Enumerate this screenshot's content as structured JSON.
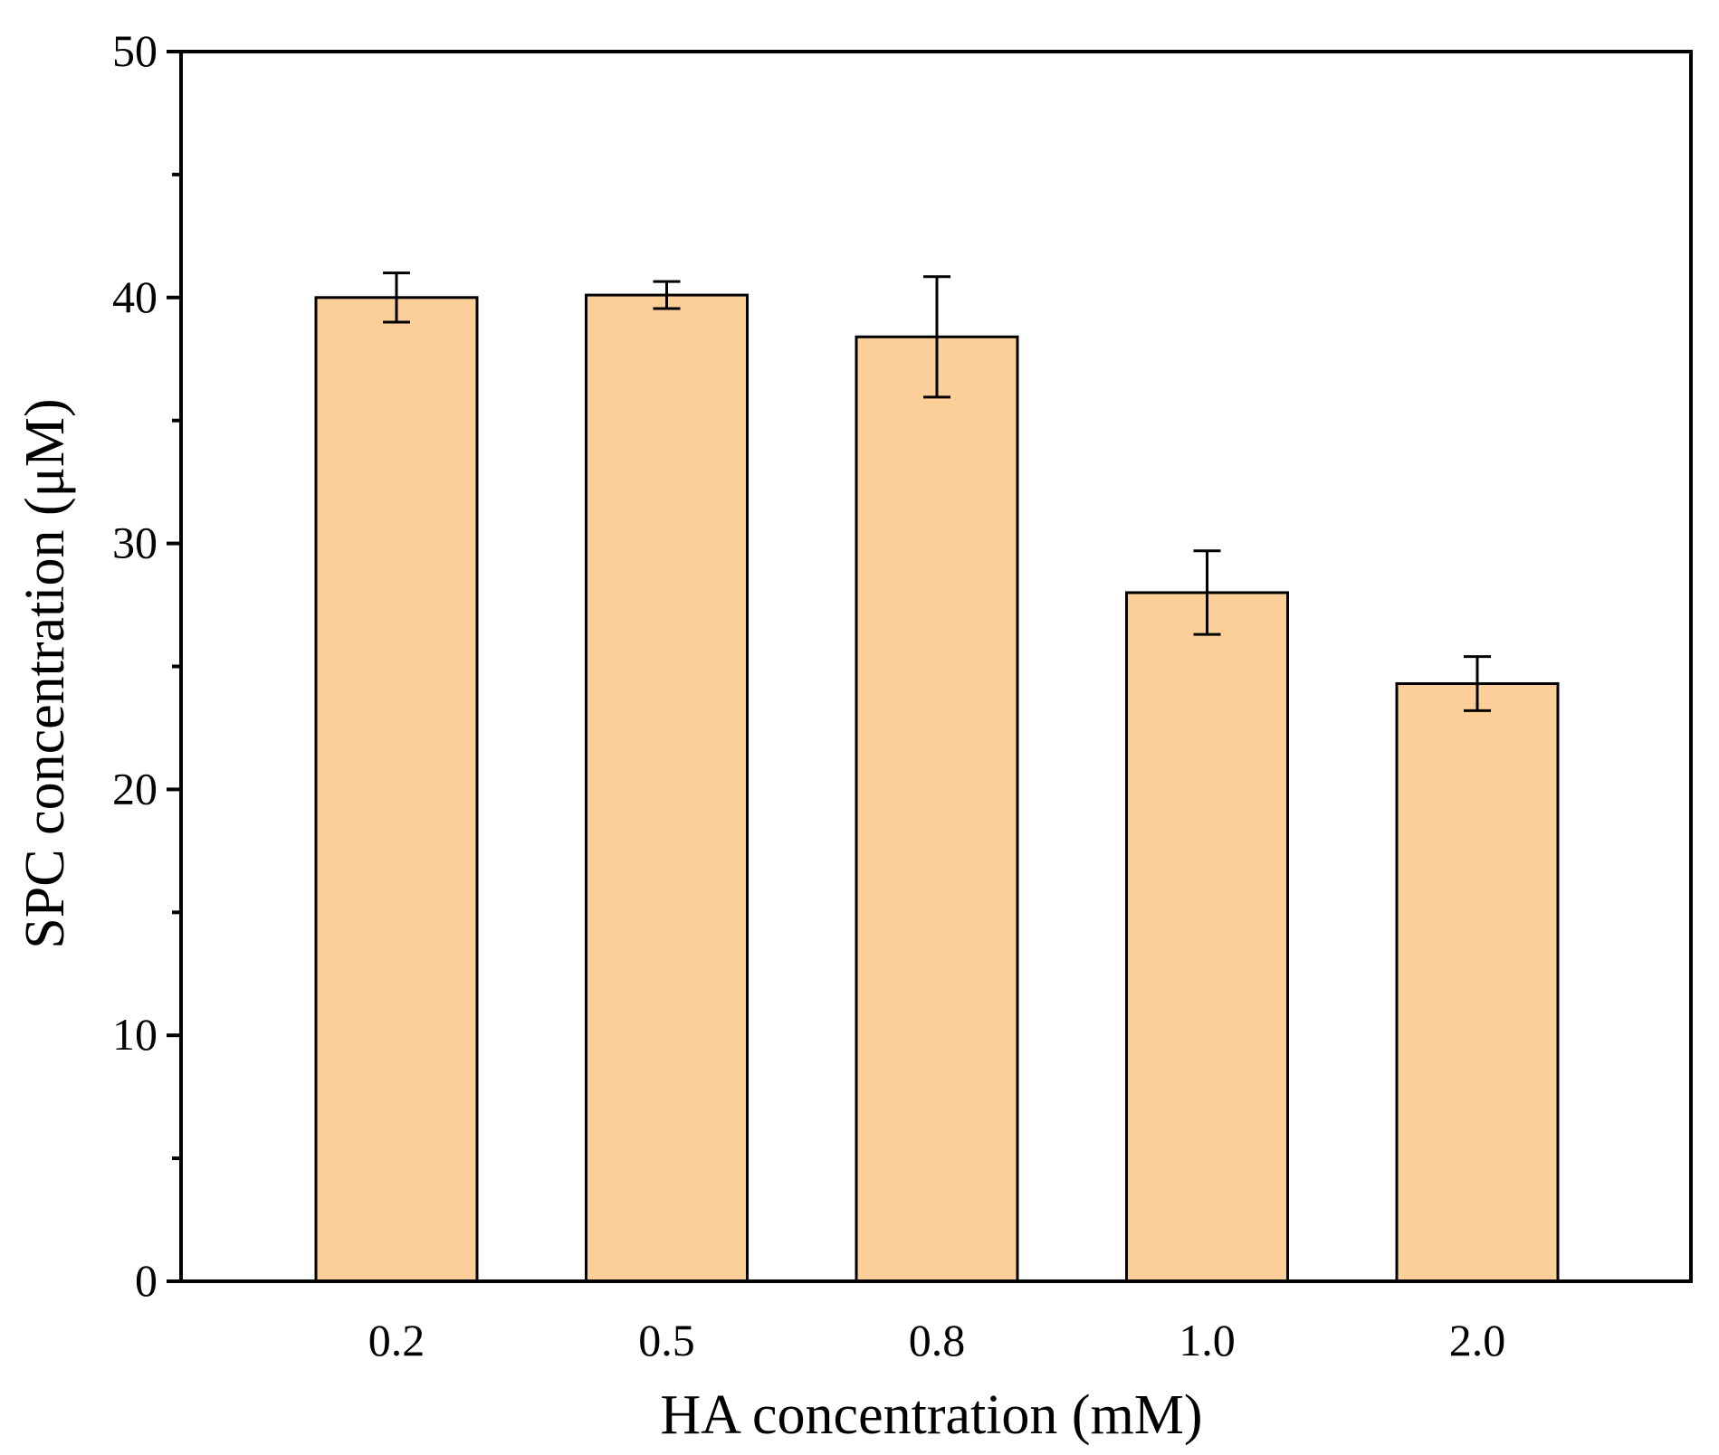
{
  "chart_data": {
    "type": "bar",
    "title": "",
    "xlabel": "HA concentration (mM)",
    "ylabel": "SPC concentration (μM)",
    "categories": [
      "0.2",
      "0.5",
      "0.8",
      "1.0",
      "2.0"
    ],
    "series": [
      {
        "name": "SPC",
        "values": [
          40.0,
          40.1,
          38.4,
          28.0,
          24.3
        ],
        "error": [
          1.0,
          0.55,
          2.45,
          1.7,
          1.1
        ]
      }
    ],
    "ylim": [
      0,
      50
    ],
    "yticks": [
      0,
      10,
      20,
      30,
      40,
      50
    ],
    "yminor_step": 5,
    "grid": false,
    "legend": "none",
    "colors": {
      "bar_fill": "#FCCE98",
      "bar_edge": "#000000",
      "axis": "#000000",
      "background": "#FFFFFF"
    }
  }
}
